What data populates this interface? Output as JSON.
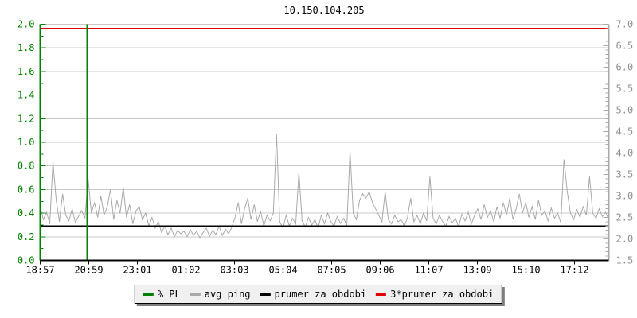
{
  "page": {
    "background": "#ffffff"
  },
  "chart_data": {
    "type": "line",
    "title": "10.150.104.205",
    "x_axis": {
      "tick_labels": [
        "18:57",
        "20:59",
        "23:01",
        "01:02",
        "03:03",
        "05:04",
        "07:05",
        "09:06",
        "11:07",
        "13:09",
        "15:10",
        "17:12"
      ],
      "color": "#000000"
    },
    "left_axis": {
      "series": "% PL",
      "min": 0.0,
      "max": 2.0,
      "tick_labels": [
        "0.0",
        "0.2",
        "0.4",
        "0.6",
        "0.8",
        "1.0",
        "1.2",
        "1.4",
        "1.6",
        "1.8",
        "2.0"
      ],
      "color": "#008000"
    },
    "right_axis": {
      "series": "avg ping (ms)",
      "min": 1.5,
      "max": 7.0,
      "tick_labels": [
        "1.5",
        "2.0",
        "2.5",
        "3.0",
        "3.5",
        "4.0",
        "4.5",
        "5.0",
        "5.5",
        "6.0",
        "6.5",
        "7.0"
      ],
      "color": "#909090"
    },
    "grid": {
      "horizontal": true,
      "vertical": false,
      "color": "#c8c8c8"
    },
    "series": [
      {
        "name": "% PL",
        "axis": "left",
        "type": "event-vline",
        "color": "#008000",
        "events": [
          {
            "time": "20:59"
          }
        ]
      },
      {
        "name": "avg ping",
        "axis": "right",
        "type": "line",
        "color": "#a9a9a9",
        "values": [
          2.75,
          2.45,
          2.62,
          2.35,
          3.8,
          2.9,
          2.4,
          3.05,
          2.55,
          2.42,
          2.7,
          2.38,
          2.52,
          2.66,
          2.48,
          3.4,
          2.6,
          2.85,
          2.5,
          3.0,
          2.55,
          2.75,
          3.15,
          2.45,
          2.9,
          2.6,
          3.2,
          2.5,
          2.8,
          2.35,
          2.65,
          2.75,
          2.45,
          2.6,
          2.3,
          2.5,
          2.25,
          2.4,
          2.15,
          2.3,
          2.1,
          2.25,
          2.05,
          2.2,
          2.12,
          2.18,
          2.05,
          2.22,
          2.08,
          2.18,
          2.02,
          2.15,
          2.25,
          2.06,
          2.2,
          2.1,
          2.3,
          2.08,
          2.22,
          2.12,
          2.28,
          2.5,
          2.85,
          2.35,
          2.7,
          2.95,
          2.45,
          2.8,
          2.4,
          2.65,
          2.3,
          2.55,
          2.42,
          2.6,
          4.45,
          2.4,
          2.25,
          2.55,
          2.3,
          2.48,
          2.35,
          3.55,
          2.42,
          2.28,
          2.5,
          2.32,
          2.45,
          2.25,
          2.55,
          2.35,
          2.6,
          2.4,
          2.3,
          2.52,
          2.36,
          2.48,
          2.3,
          4.05,
          2.6,
          2.45,
          2.9,
          3.05,
          2.95,
          3.1,
          2.85,
          2.7,
          2.55,
          2.4,
          3.1,
          2.45,
          2.35,
          2.55,
          2.4,
          2.45,
          2.3,
          2.5,
          2.95,
          2.4,
          2.55,
          2.35,
          2.6,
          2.42,
          3.45,
          2.48,
          2.35,
          2.55,
          2.4,
          2.3,
          2.52,
          2.38,
          2.48,
          2.28,
          2.58,
          2.42,
          2.62,
          2.35,
          2.55,
          2.7,
          2.45,
          2.8,
          2.5,
          2.65,
          2.4,
          2.75,
          2.48,
          2.85,
          2.55,
          2.95,
          2.45,
          2.7,
          3.05,
          2.6,
          2.85,
          2.5,
          2.75,
          2.45,
          2.9,
          2.55,
          2.65,
          2.42,
          2.72,
          2.48,
          2.6,
          2.38,
          3.85,
          3.1,
          2.6,
          2.45,
          2.68,
          2.5,
          2.75,
          2.55,
          3.45,
          2.6,
          2.48,
          2.7,
          2.52,
          2.62,
          2.45
        ]
      },
      {
        "name": "prumer za obdobi",
        "axis": "right",
        "type": "hline",
        "color": "#000000",
        "value": 2.3
      },
      {
        "name": "3*prumer za obdobi",
        "axis": "right",
        "type": "hline",
        "color": "#e00000",
        "value": 6.9
      }
    ],
    "legend": [
      {
        "label": "% PL",
        "color": "#008000"
      },
      {
        "label": "avg ping",
        "color": "#a9a9a9"
      },
      {
        "label": "prumer za obdobi",
        "color": "#000000"
      },
      {
        "label": "3*prumer za obdobi",
        "color": "#e00000"
      }
    ],
    "legend_position": "bottom"
  }
}
